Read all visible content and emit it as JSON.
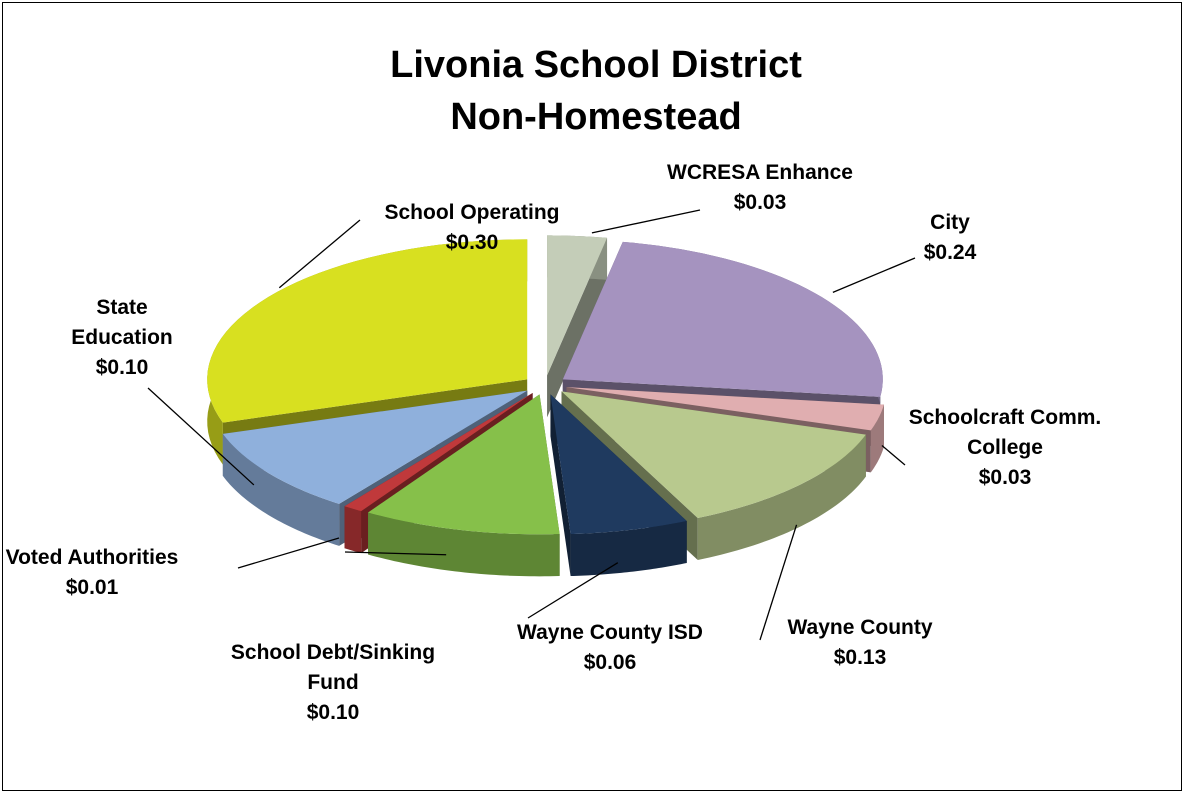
{
  "chart_data": {
    "type": "pie3d",
    "title": "Livonia School District Non-Homestead",
    "categories": [
      "WCRESA Enhance",
      "City",
      "Schoolcraft Comm. College",
      "Wayne County",
      "Wayne County ISD",
      "School Debt/Sinking Fund",
      "Voted Authorities",
      "State Education",
      "School Operating"
    ],
    "values": [
      0.03,
      0.24,
      0.03,
      0.13,
      0.06,
      0.1,
      0.01,
      0.1,
      0.3
    ],
    "value_labels": [
      "$0.03",
      "$0.24",
      "$0.03",
      "$0.13",
      "$0.06",
      "$0.10",
      "$0.01",
      "$0.10",
      "$0.30"
    ],
    "colors": [
      "#c4cdb8",
      "#a593bf",
      "#e0aeb0",
      "#b8c98e",
      "#1f3a5f",
      "#86c04a",
      "#c0393b",
      "#8fb0dc",
      "#d8e020"
    ]
  }
}
